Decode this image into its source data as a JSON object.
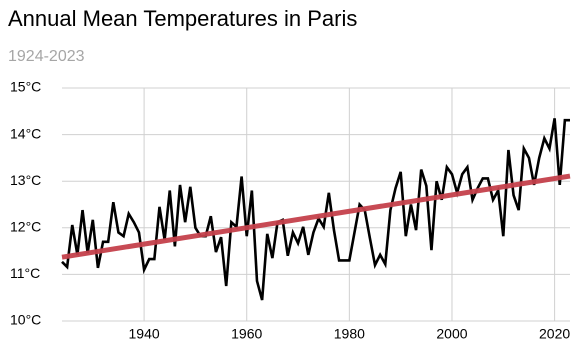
{
  "chart_data": {
    "type": "line",
    "title": "Annual Mean Temperatures in Paris",
    "subtitle": "1924-2023",
    "xlim": [
      1924,
      2023
    ],
    "xticks": [
      1940,
      1960,
      1980,
      2000,
      2020
    ],
    "ylim": [
      10,
      15
    ],
    "yticks": [
      {
        "value": 10,
        "label": "10°C"
      },
      {
        "value": 11,
        "label": "11°C"
      },
      {
        "value": 12,
        "label": "12°C"
      },
      {
        "value": 13,
        "label": "13°C"
      },
      {
        "value": 14,
        "label": "14°C"
      },
      {
        "value": 15,
        "label": "15°C"
      }
    ],
    "grid": true,
    "series": [
      {
        "color": "#000000",
        "x": [
          1924,
          1925,
          1926,
          1927,
          1928,
          1929,
          1930,
          1931,
          1932,
          1933,
          1934,
          1935,
          1936,
          1937,
          1938,
          1939,
          1940,
          1941,
          1942,
          1943,
          1944,
          1945,
          1946,
          1947,
          1948,
          1949,
          1950,
          1951,
          1952,
          1953,
          1954,
          1955,
          1956,
          1957,
          1958,
          1959,
          1960,
          1961,
          1962,
          1963,
          1964,
          1965,
          1966,
          1967,
          1968,
          1969,
          1970,
          1971,
          1972,
          1973,
          1974,
          1975,
          1976,
          1977,
          1978,
          1979,
          1980,
          1981,
          1982,
          1983,
          1984,
          1985,
          1986,
          1987,
          1988,
          1989,
          1990,
          1991,
          1992,
          1993,
          1994,
          1995,
          1996,
          1997,
          1998,
          1999,
          2000,
          2001,
          2002,
          2003,
          2004,
          2005,
          2006,
          2007,
          2008,
          2009,
          2010,
          2011,
          2012,
          2013,
          2014,
          2015,
          2016,
          2017,
          2018,
          2019,
          2020,
          2021,
          2022,
          2023
        ],
        "values": [
          11.27,
          11.16,
          12.06,
          11.42,
          12.38,
          11.46,
          12.17,
          11.14,
          11.7,
          11.7,
          12.55,
          11.9,
          11.82,
          12.3,
          12.12,
          11.9,
          11.1,
          11.33,
          11.33,
          12.45,
          11.74,
          12.8,
          11.6,
          12.92,
          12.12,
          12.88,
          12.0,
          11.82,
          11.82,
          12.25,
          11.48,
          11.8,
          10.75,
          12.12,
          12.02,
          13.1,
          11.82,
          12.8,
          10.86,
          10.45,
          11.87,
          11.35,
          12.12,
          12.17,
          11.4,
          11.9,
          11.67,
          12.02,
          11.42,
          11.9,
          12.2,
          12.02,
          12.75,
          11.95,
          11.3,
          11.3,
          11.3,
          11.9,
          12.5,
          12.38,
          11.78,
          11.2,
          11.42,
          11.22,
          12.38,
          12.85,
          13.2,
          11.82,
          12.5,
          11.95,
          13.25,
          12.9,
          11.52,
          13.0,
          12.6,
          13.3,
          13.15,
          12.75,
          13.15,
          13.3,
          12.6,
          12.85,
          13.06,
          13.06,
          12.6,
          12.8,
          11.82,
          13.67,
          12.7,
          12.38,
          13.7,
          13.5,
          12.92,
          13.5,
          13.92,
          13.7,
          14.35,
          12.92,
          14.31,
          14.31
        ]
      },
      {
        "color": "#c4404b",
        "x": [
          1924,
          2023
        ],
        "values": [
          11.37,
          13.11
        ]
      }
    ]
  }
}
